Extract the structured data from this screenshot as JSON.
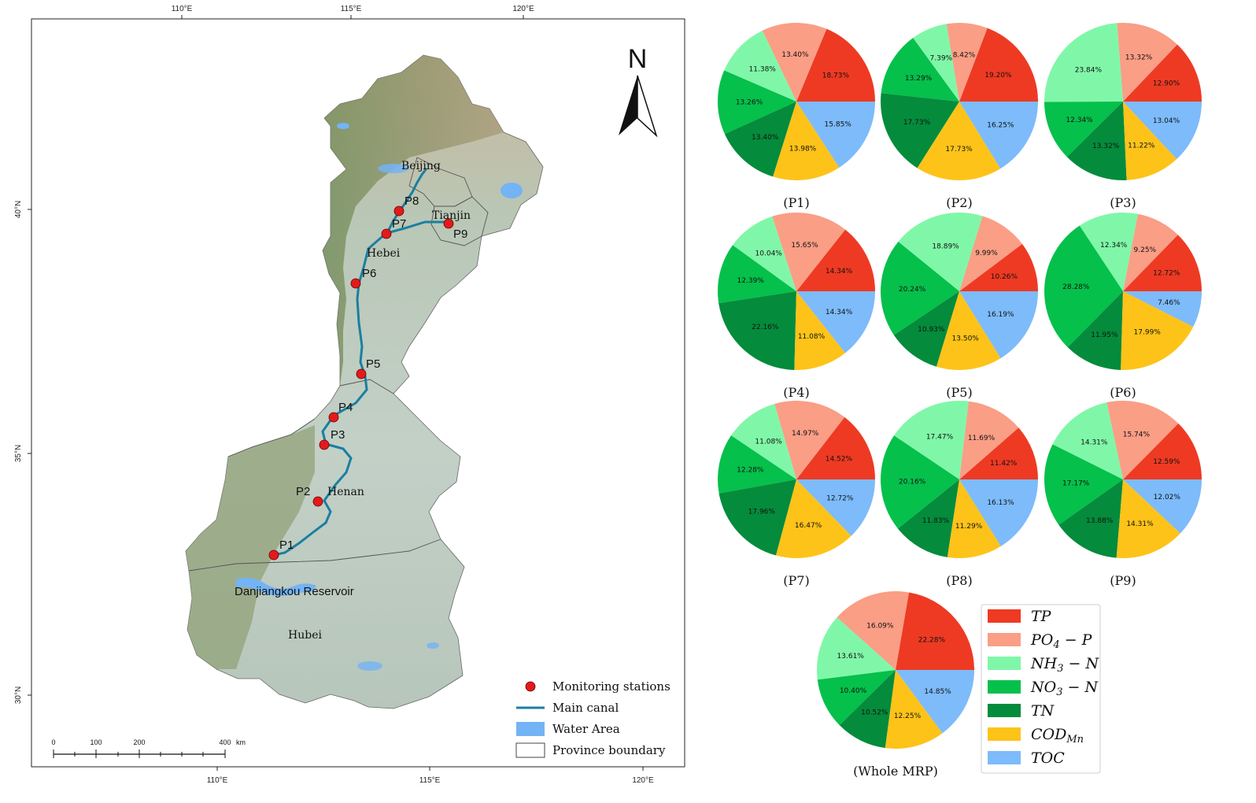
{
  "map": {
    "top_lon_labels": [
      "110°E",
      "115°E",
      "120°E"
    ],
    "bottom_lon_labels": [
      "110°E",
      "115°E",
      "120°E"
    ],
    "lat_labels": [
      "40°N",
      "35°N",
      "30°N"
    ],
    "north_label": "N",
    "stations": [
      {
        "id": "P1",
        "label": "P1"
      },
      {
        "id": "P2",
        "label": "P2"
      },
      {
        "id": "P3",
        "label": "P3"
      },
      {
        "id": "P4",
        "label": "P4"
      },
      {
        "id": "P5",
        "label": "P5"
      },
      {
        "id": "P6",
        "label": "P6"
      },
      {
        "id": "P7",
        "label": "P7"
      },
      {
        "id": "P8",
        "label": "P8"
      },
      {
        "id": "P9",
        "label": "P9"
      }
    ],
    "places": {
      "beijing": "Beijing",
      "tianjin": "Tianjin",
      "hebei": "Hebei",
      "henan": "Henan",
      "hubei": "Hubei",
      "danjiangkou": "Danjiangkou Reservoir"
    },
    "legend": {
      "stations": "Monitoring stations",
      "canal": "Main canal",
      "water": "Water Area",
      "boundary": "Province boundary"
    },
    "scale": {
      "ticks": [
        "0",
        "100",
        "200",
        "400"
      ],
      "unit": "km"
    },
    "colors": {
      "canal": "#1a7fa0",
      "water": "#74b3f5",
      "station": "#e31a1c",
      "terrain": "#bfccc2"
    }
  },
  "chart_data": {
    "type": "pie",
    "legend": [
      {
        "key": "TP",
        "base": "TP",
        "sub": "",
        "rest": "",
        "color": "#ee3a23"
      },
      {
        "key": "PO4-P",
        "base": "PO",
        "sub": "4",
        "rest": " − P",
        "color": "#fa9e86"
      },
      {
        "key": "NH3-N",
        "base": "NH",
        "sub": "3",
        "rest": " − N",
        "color": "#80f7a8"
      },
      {
        "key": "NO3-N",
        "base": "NO",
        "sub": "3",
        "rest": " − N",
        "color": "#05c04b"
      },
      {
        "key": "TN",
        "base": "TN",
        "sub": "",
        "rest": "",
        "color": "#048b3c"
      },
      {
        "key": "CODMn",
        "base": "COD",
        "sub": "Mn",
        "rest": "",
        "color": "#fdc319"
      },
      {
        "key": "TOC",
        "base": "TOC",
        "sub": "",
        "rest": "",
        "color": "#7dbbfa"
      }
    ],
    "pies": [
      {
        "caption": "(P1)",
        "values": [
          18.73,
          13.4,
          11.38,
          13.26,
          13.4,
          13.98,
          15.85
        ],
        "labels": [
          "18.73%",
          "13.40%",
          "11.38%",
          "13.26%",
          "13.40%",
          "13.98%",
          "15.85%"
        ]
      },
      {
        "caption": "(P2)",
        "values": [
          19.2,
          8.42,
          7.39,
          13.29,
          17.73,
          17.73,
          16.25
        ],
        "labels": [
          "19.20%",
          "8.42%",
          "7.39%",
          "13.29%",
          "17.73%",
          "17.73%",
          "16.25%"
        ]
      },
      {
        "caption": "(P3)",
        "values": [
          12.9,
          13.32,
          23.84,
          12.34,
          13.32,
          11.22,
          13.04
        ],
        "labels": [
          "12.90%",
          "13.32%",
          "23.84%",
          "12.34%",
          "13.32%",
          "11.22%",
          "13.04%"
        ]
      },
      {
        "caption": "(P4)",
        "values": [
          14.34,
          15.65,
          10.04,
          12.39,
          22.16,
          11.08,
          14.34
        ],
        "labels": [
          "14.34%",
          "15.65%",
          "10.04%",
          "12.39%",
          "22.16%",
          "11.08%",
          "14.34%"
        ]
      },
      {
        "caption": "(P5)",
        "values": [
          10.26,
          9.99,
          18.89,
          20.24,
          10.93,
          13.5,
          16.19
        ],
        "labels": [
          "10.26%",
          "9.99%",
          "18.89%",
          "20.24%",
          "10.93%",
          "13.50%",
          "16.19%"
        ]
      },
      {
        "caption": "(P6)",
        "values": [
          12.72,
          9.25,
          12.34,
          28.28,
          11.95,
          17.99,
          7.46
        ],
        "labels": [
          "12.72%",
          "9.25%",
          "12.34%",
          "28.28%",
          "11.95%",
          "17.99%",
          "7.46%"
        ]
      },
      {
        "caption": "(P7)",
        "values": [
          14.52,
          14.97,
          11.08,
          12.28,
          17.96,
          16.47,
          12.72
        ],
        "labels": [
          "14.52%",
          "14.97%",
          "11.08%",
          "12.28%",
          "17.96%",
          "16.47%",
          "12.72%"
        ]
      },
      {
        "caption": "(P8)",
        "values": [
          11.42,
          11.69,
          17.47,
          20.16,
          11.83,
          11.29,
          16.13
        ],
        "labels": [
          "11.42%",
          "11.69%",
          "17.47%",
          "20.16%",
          "11.83%",
          "11.29%",
          "16.13%"
        ]
      },
      {
        "caption": "(P9)",
        "values": [
          12.59,
          15.74,
          14.31,
          17.17,
          13.88,
          14.31,
          12.02
        ],
        "labels": [
          "12.59%",
          "15.74%",
          "14.31%",
          "17.17%",
          "13.88%",
          "14.31%",
          "12.02%"
        ]
      },
      {
        "caption": "(Whole MRP)",
        "values": [
          22.28,
          16.09,
          13.61,
          10.4,
          10.52,
          12.25,
          14.85
        ],
        "labels": [
          "22.28%",
          "16.09%",
          "13.61%",
          "10.40%",
          "10.52%",
          "12.25%",
          "14.85%"
        ]
      }
    ]
  }
}
